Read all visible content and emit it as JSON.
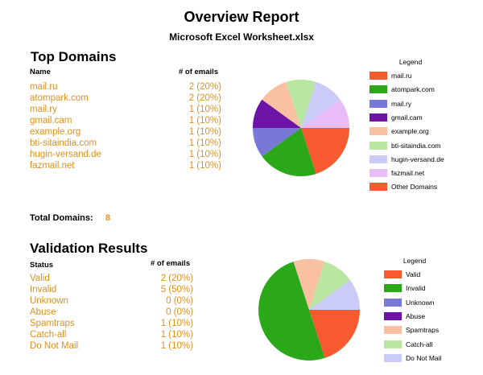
{
  "report": {
    "title": "Overview Report",
    "subtitle": "Microsoft Excel Worksheet.xlsx"
  },
  "domains": {
    "heading": "Top Domains",
    "col_name": "Name",
    "col_emails": "# of emails",
    "rows": [
      {
        "label": "mail.ru",
        "value": "2 (20%)"
      },
      {
        "label": "atompark.com",
        "value": "2 (20%)"
      },
      {
        "label": "mail.ry",
        "value": "1 (10%)"
      },
      {
        "label": "gmail.cam",
        "value": "1 (10%)"
      },
      {
        "label": "example.org",
        "value": "1 (10%)"
      },
      {
        "label": "bti-sitaindia.com",
        "value": "1 (10%)"
      },
      {
        "label": "hugin-versand.de",
        "value": "1 (10%)"
      },
      {
        "label": "fazmail.net",
        "value": "1 (10%)"
      }
    ],
    "total_label": "Total Domains:",
    "total_value": "8"
  },
  "validation": {
    "heading": "Validation Results",
    "col_status": "Status",
    "col_emails": "# of emails",
    "rows": [
      {
        "label": "Valid",
        "value": "2 (20%)"
      },
      {
        "label": "Invalid",
        "value": "5 (50%)"
      },
      {
        "label": "Unknown",
        "value": "0 (0%)"
      },
      {
        "label": "Abuse",
        "value": "0 (0%)"
      },
      {
        "label": "Spamtraps",
        "value": "1 (10%)"
      },
      {
        "label": "Catch-all",
        "value": "1 (10%)"
      },
      {
        "label": "Do Not Mail",
        "value": "1 (10%)"
      }
    ]
  },
  "chart_data": [
    {
      "type": "pie",
      "legend_title": "Legend",
      "legend_position": "right",
      "start_angle_deg": 0,
      "slices": [
        {
          "label": "mail.ru",
          "value": 2,
          "color": "#f75a2f"
        },
        {
          "label": "atompark.com",
          "value": 2,
          "color": "#2aa81a"
        },
        {
          "label": "mail.ry",
          "value": 1,
          "color": "#7878d6"
        },
        {
          "label": "gmail.cam",
          "value": 1,
          "color": "#6d14a6"
        },
        {
          "label": "example.org",
          "value": 1,
          "color": "#f9c0a2"
        },
        {
          "label": "bti-sitaindia.com",
          "value": 1,
          "color": "#b9e6a0"
        },
        {
          "label": "hugin-versand.de",
          "value": 1,
          "color": "#cbcbf7"
        },
        {
          "label": "fazmail.net",
          "value": 1,
          "color": "#e7bcf7"
        },
        {
          "label": "Other Domains",
          "value": 0,
          "color": "#f75a2f"
        }
      ]
    },
    {
      "type": "pie",
      "legend_title": "Legend",
      "legend_position": "right",
      "start_angle_deg": 0,
      "slices": [
        {
          "label": "Valid",
          "value": 2,
          "color": "#f75a2f"
        },
        {
          "label": "Invalid",
          "value": 5,
          "color": "#2aa81a"
        },
        {
          "label": "Unknown",
          "value": 0,
          "color": "#7878d6"
        },
        {
          "label": "Abuse",
          "value": 0,
          "color": "#6d14a6"
        },
        {
          "label": "Spamtraps",
          "value": 1,
          "color": "#f9c0a2"
        },
        {
          "label": "Catch-all",
          "value": 1,
          "color": "#b9e6a0"
        },
        {
          "label": "Do Not Mail",
          "value": 1,
          "color": "#cbcbf7"
        }
      ]
    }
  ]
}
